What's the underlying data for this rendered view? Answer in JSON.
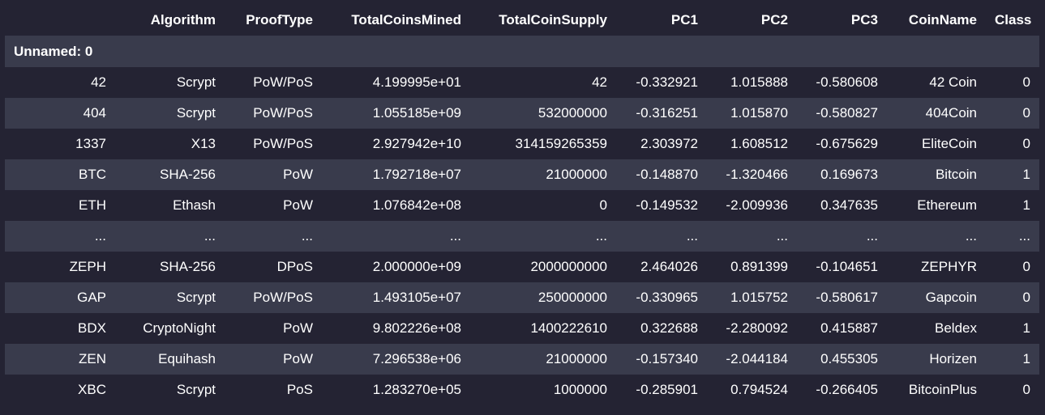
{
  "table": {
    "columns": [
      "Algorithm",
      "ProofType",
      "TotalCoinsMined",
      "TotalCoinSupply",
      "PC1",
      "PC2",
      "PC3",
      "CoinName",
      "Class"
    ],
    "index_name": "Unnamed: 0",
    "rows": [
      {
        "index": "42",
        "cells": [
          "Scrypt",
          "PoW/PoS",
          "4.199995e+01",
          "42",
          "-0.332921",
          "1.015888",
          "-0.580608",
          "42 Coin",
          "0"
        ]
      },
      {
        "index": "404",
        "cells": [
          "Scrypt",
          "PoW/PoS",
          "1.055185e+09",
          "532000000",
          "-0.316251",
          "1.015870",
          "-0.580827",
          "404Coin",
          "0"
        ]
      },
      {
        "index": "1337",
        "cells": [
          "X13",
          "PoW/PoS",
          "2.927942e+10",
          "314159265359",
          "2.303972",
          "1.608512",
          "-0.675629",
          "EliteCoin",
          "0"
        ]
      },
      {
        "index": "BTC",
        "cells": [
          "SHA-256",
          "PoW",
          "1.792718e+07",
          "21000000",
          "-0.148870",
          "-1.320466",
          "0.169673",
          "Bitcoin",
          "1"
        ]
      },
      {
        "index": "ETH",
        "cells": [
          "Ethash",
          "PoW",
          "1.076842e+08",
          "0",
          "-0.149532",
          "-2.009936",
          "0.347635",
          "Ethereum",
          "1"
        ]
      },
      {
        "index": "...",
        "cells": [
          "...",
          "...",
          "...",
          "...",
          "...",
          "...",
          "...",
          "...",
          "..."
        ]
      },
      {
        "index": "ZEPH",
        "cells": [
          "SHA-256",
          "DPoS",
          "2.000000e+09",
          "2000000000",
          "2.464026",
          "0.891399",
          "-0.104651",
          "ZEPHYR",
          "0"
        ]
      },
      {
        "index": "GAP",
        "cells": [
          "Scrypt",
          "PoW/PoS",
          "1.493105e+07",
          "250000000",
          "-0.330965",
          "1.015752",
          "-0.580617",
          "Gapcoin",
          "0"
        ]
      },
      {
        "index": "BDX",
        "cells": [
          "CryptoNight",
          "PoW",
          "9.802226e+08",
          "1400222610",
          "0.322688",
          "-2.280092",
          "0.415887",
          "Beldex",
          "1"
        ]
      },
      {
        "index": "ZEN",
        "cells": [
          "Equihash",
          "PoW",
          "7.296538e+06",
          "21000000",
          "-0.157340",
          "-2.044184",
          "0.455305",
          "Horizen",
          "1"
        ]
      },
      {
        "index": "XBC",
        "cells": [
          "Scrypt",
          "PoS",
          "1.283270e+05",
          "1000000",
          "-0.285901",
          "0.794524",
          "-0.266405",
          "BitcoinPlus",
          "0"
        ]
      }
    ]
  },
  "colors": {
    "background": "#242333",
    "stripe": "#393b4c",
    "text": "#ffffff"
  }
}
